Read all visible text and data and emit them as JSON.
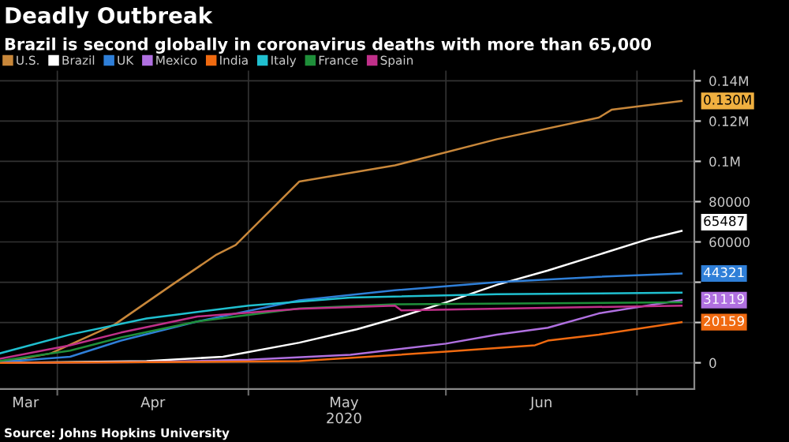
{
  "chart_data": {
    "type": "line",
    "title": "Deadly Outbreak",
    "subtitle": "Brazil is second globally in coronavirus deaths with more than 65,000",
    "legend": "top left",
    "grid": true,
    "marker": "none",
    "line_style": "solid",
    "xlim": [
      "2020-03-23",
      "2020-07-10"
    ],
    "xticks": [
      {
        "value": "2020-03-27",
        "label": "Mar"
      },
      {
        "value": "2020-04-01",
        "label": null
      },
      {
        "value": "2020-04-16",
        "label": "Apr"
      },
      {
        "value": "2020-05-01",
        "label": null
      },
      {
        "value": "2020-05-16",
        "label": "May\n2020"
      },
      {
        "value": "2020-06-01",
        "label": null
      },
      {
        "value": "2020-06-16",
        "label": "Jun"
      },
      {
        "value": "2020-07-01",
        "label": null
      }
    ],
    "ylim": [
      -13000,
      145000
    ],
    "yticks": [
      0,
      {
        "value": 20000,
        "label": null
      },
      {
        "value": 40000,
        "label": null
      },
      60000,
      80000,
      {
        "value": 100000,
        "label": "0.1M"
      },
      {
        "value": 120000,
        "label": "0.12M"
      },
      {
        "value": 140000,
        "label": "0.14M"
      }
    ],
    "series": [
      {
        "name": "U.S.",
        "color": "#c8873a",
        "x": [
          "2020-03-23",
          "2020-03-31",
          "2020-04-10",
          "2020-04-19",
          "2020-04-26",
          "2020-04-29",
          "2020-05-09",
          "2020-05-24",
          "2020-06-09",
          "2020-06-25",
          "2020-06-27",
          "2020-07-08"
        ],
        "values": [
          0,
          4700,
          19000,
          38700,
          53700,
          58500,
          90000,
          98000,
          111000,
          121700,
          125600,
          130000
        ],
        "value_labels": [
          null,
          null,
          null,
          null,
          null,
          null,
          null,
          null,
          null,
          null,
          null,
          "0.130M"
        ]
      },
      {
        "name": "Brazil",
        "color": "#ffffff",
        "x": [
          "2020-03-23",
          "2020-04-15",
          "2020-04-27",
          "2020-05-09",
          "2020-05-18",
          "2020-05-24",
          "2020-06-01",
          "2020-06-09",
          "2020-06-17",
          "2020-06-25",
          "2020-07-03",
          "2020-07-08"
        ],
        "values": [
          0,
          800,
          3000,
          10000,
          16600,
          22000,
          30000,
          38700,
          45800,
          53700,
          61600,
          65487
        ],
        "value_labels": [
          null,
          null,
          null,
          null,
          null,
          null,
          null,
          null,
          null,
          null,
          null,
          "65487"
        ]
      },
      {
        "name": "UK",
        "color": "#2f7fd8",
        "x": [
          "2020-03-23",
          "2020-04-03",
          "2020-04-11",
          "2020-04-23",
          "2020-05-09",
          "2020-05-24",
          "2020-06-09",
          "2020-06-25",
          "2020-07-08"
        ],
        "values": [
          300,
          3000,
          11000,
          20500,
          31000,
          36000,
          40000,
          42700,
          44321
        ],
        "value_labels": [
          null,
          null,
          null,
          null,
          null,
          null,
          null,
          null,
          "44321"
        ]
      },
      {
        "name": "Mexico",
        "color": "#b070e0",
        "x": [
          "2020-03-23",
          "2020-04-15",
          "2020-05-01",
          "2020-05-17",
          "2020-06-01",
          "2020-06-09",
          "2020-06-17",
          "2020-06-25",
          "2020-07-08"
        ],
        "values": [
          0,
          300,
          1500,
          4000,
          9500,
          14000,
          17400,
          24500,
          31119
        ],
        "value_labels": [
          null,
          null,
          null,
          null,
          null,
          null,
          null,
          null,
          "31119"
        ]
      },
      {
        "name": "India",
        "color": "#f06a10",
        "x": [
          "2020-03-23",
          "2020-04-15",
          "2020-05-09",
          "2020-06-01",
          "2020-06-15",
          "2020-06-17",
          "2020-06-25",
          "2020-07-08"
        ],
        "values": [
          0,
          300,
          800,
          5500,
          8700,
          11000,
          14000,
          20159
        ],
        "value_labels": [
          null,
          null,
          null,
          null,
          null,
          null,
          null,
          "20159"
        ]
      },
      {
        "name": "Italy",
        "color": "#20c0d0",
        "x": [
          "2020-03-23",
          "2020-04-03",
          "2020-04-15",
          "2020-05-01",
          "2020-05-17",
          "2020-06-09",
          "2020-07-08"
        ],
        "values": [
          4700,
          14000,
          22000,
          28400,
          32400,
          34000,
          34800
        ]
      },
      {
        "name": "France",
        "color": "#1f8f3a",
        "x": [
          "2020-03-23",
          "2020-04-03",
          "2020-04-11",
          "2020-04-23",
          "2020-05-09",
          "2020-05-24",
          "2020-07-08"
        ],
        "values": [
          900,
          6000,
          12600,
          20500,
          27000,
          29000,
          30000
        ]
      },
      {
        "name": "Spain",
        "color": "#c0308a",
        "x": [
          "2020-03-23",
          "2020-04-03",
          "2020-04-11",
          "2020-04-23",
          "2020-05-09",
          "2020-05-24",
          "2020-05-25",
          "2020-07-08"
        ],
        "values": [
          2000,
          8700,
          15000,
          23000,
          26800,
          28400,
          26000,
          28400
        ]
      }
    ],
    "annotations": [
      "Source: Johns Hopkins University"
    ]
  }
}
